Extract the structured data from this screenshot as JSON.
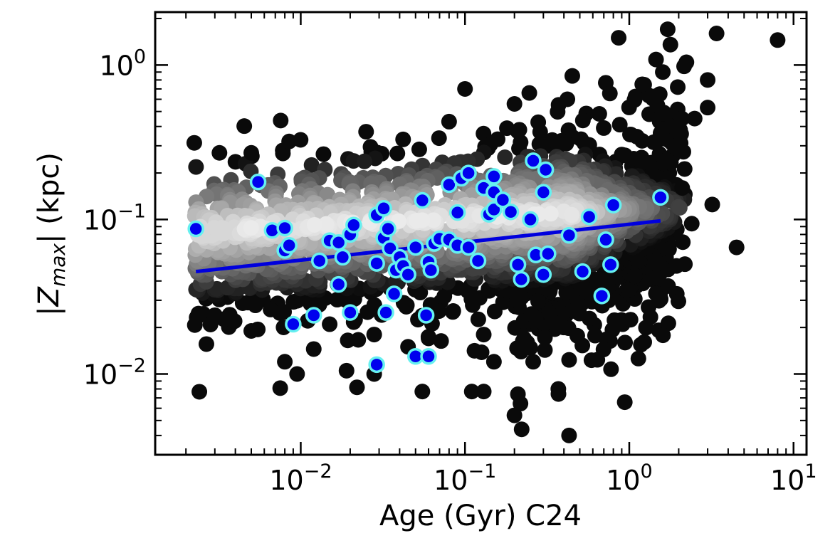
{
  "chart_data": {
    "type": "scatter",
    "title": "",
    "xlabel": "Age (Gyr) C24",
    "ylabel": "|Z_max| (kpc)",
    "xscale": "log",
    "yscale": "log",
    "xlim": [
      0.0013,
      12
    ],
    "ylim": [
      0.003,
      2.2
    ],
    "x_ticks": [
      {
        "value": 0.01,
        "base": "10",
        "exp": "−2"
      },
      {
        "value": 0.1,
        "base": "10",
        "exp": "−1"
      },
      {
        "value": 1,
        "base": "10",
        "exp": "0"
      },
      {
        "value": 10,
        "base": "10",
        "exp": "1"
      }
    ],
    "y_ticks": [
      {
        "value": 0.01,
        "base": "10",
        "exp": "−2"
      },
      {
        "value": 0.1,
        "base": "10",
        "exp": "−1"
      },
      {
        "value": 1,
        "base": "10",
        "exp": "0"
      }
    ],
    "grid": false,
    "legend": "none",
    "colors": {
      "background_points": "grayscale density",
      "highlight_fill": "#0000ee",
      "highlight_edge": "#66f0f0",
      "fit_line": "#0000dd"
    },
    "background_points": {
      "note": "dense grayscale cloud (lighter = higher density)",
      "outliers": [
        [
          0.0032,
          0.27
        ],
        [
          0.005,
          0.27
        ],
        [
          0.0085,
          0.32
        ],
        [
          0.025,
          0.37
        ],
        [
          0.042,
          0.33
        ],
        [
          0.08,
          0.43
        ],
        [
          0.1,
          0.7
        ],
        [
          0.18,
          0.39
        ],
        [
          0.2,
          0.56
        ],
        [
          0.45,
          0.85
        ],
        [
          0.42,
          0.6
        ],
        [
          1.2,
          0.75
        ],
        [
          1.6,
          0.9
        ],
        [
          3.0,
          0.8
        ],
        [
          3.4,
          1.6
        ],
        [
          8.0,
          1.45
        ],
        [
          3.0,
          0.53
        ],
        [
          2.5,
          0.45
        ],
        [
          2.4,
          0.094
        ],
        [
          3.2,
          0.125
        ],
        [
          4.5,
          0.066
        ],
        [
          2.1,
          0.16
        ],
        [
          0.003,
          0.024
        ],
        [
          0.005,
          0.019
        ],
        [
          0.0075,
          0.0081
        ],
        [
          0.008,
          0.012
        ],
        [
          0.0095,
          0.01
        ],
        [
          0.012,
          0.0145
        ],
        [
          0.019,
          0.0105
        ],
        [
          0.022,
          0.0082
        ],
        [
          0.028,
          0.01
        ],
        [
          0.055,
          0.0077
        ],
        [
          0.11,
          0.0077
        ],
        [
          0.13,
          0.0077
        ],
        [
          0.2,
          0.0054
        ],
        [
          0.21,
          0.0074
        ],
        [
          0.26,
          0.012
        ],
        [
          0.37,
          0.008
        ],
        [
          0.43,
          0.004
        ],
        [
          0.15,
          0.012
        ],
        [
          0.028,
          0.018
        ],
        [
          0.045,
          0.015
        ],
        [
          0.06,
          0.017
        ],
        [
          0.4,
          0.02
        ],
        [
          0.75,
          0.03
        ],
        [
          1.0,
          0.035
        ],
        [
          0.015,
          0.021
        ],
        [
          0.13,
          0.018
        ]
      ]
    },
    "highlighted_sample": [
      [
        0.0023,
        0.087
      ],
      [
        0.0055,
        0.175
      ],
      [
        0.0067,
        0.085
      ],
      [
        0.008,
        0.088
      ],
      [
        0.008,
        0.063
      ],
      [
        0.0085,
        0.068
      ],
      [
        0.009,
        0.021
      ],
      [
        0.012,
        0.024
      ],
      [
        0.013,
        0.054
      ],
      [
        0.015,
        0.073
      ],
      [
        0.017,
        0.071
      ],
      [
        0.017,
        0.038
      ],
      [
        0.018,
        0.057
      ],
      [
        0.02,
        0.025
      ],
      [
        0.02,
        0.08
      ],
      [
        0.021,
        0.092
      ],
      [
        0.029,
        0.107
      ],
      [
        0.029,
        0.052
      ],
      [
        0.029,
        0.0115
      ],
      [
        0.032,
        0.118
      ],
      [
        0.032,
        0.076
      ],
      [
        0.033,
        0.025
      ],
      [
        0.034,
        0.087
      ],
      [
        0.035,
        0.065
      ],
      [
        0.037,
        0.033
      ],
      [
        0.038,
        0.047
      ],
      [
        0.04,
        0.057
      ],
      [
        0.042,
        0.05
      ],
      [
        0.045,
        0.044
      ],
      [
        0.05,
        0.013
      ],
      [
        0.05,
        0.066
      ],
      [
        0.055,
        0.133
      ],
      [
        0.058,
        0.024
      ],
      [
        0.06,
        0.013
      ],
      [
        0.06,
        0.053
      ],
      [
        0.062,
        0.047
      ],
      [
        0.065,
        0.07
      ],
      [
        0.07,
        0.075
      ],
      [
        0.08,
        0.074
      ],
      [
        0.08,
        0.168
      ],
      [
        0.09,
        0.068
      ],
      [
        0.09,
        0.111
      ],
      [
        0.095,
        0.185
      ],
      [
        0.105,
        0.2
      ],
      [
        0.105,
        0.066
      ],
      [
        0.12,
        0.054
      ],
      [
        0.13,
        0.16
      ],
      [
        0.14,
        0.108
      ],
      [
        0.15,
        0.19
      ],
      [
        0.15,
        0.15
      ],
      [
        0.15,
        0.116
      ],
      [
        0.17,
        0.134
      ],
      [
        0.19,
        0.112
      ],
      [
        0.21,
        0.051
      ],
      [
        0.22,
        0.041
      ],
      [
        0.25,
        0.1
      ],
      [
        0.26,
        0.24
      ],
      [
        0.27,
        0.059
      ],
      [
        0.3,
        0.044
      ],
      [
        0.3,
        0.15
      ],
      [
        0.31,
        0.21
      ],
      [
        0.32,
        0.06
      ],
      [
        0.43,
        0.079
      ],
      [
        0.52,
        0.046
      ],
      [
        0.57,
        0.104
      ],
      [
        0.68,
        0.032
      ],
      [
        0.72,
        0.074
      ],
      [
        0.77,
        0.051
      ],
      [
        0.8,
        0.124
      ],
      [
        1.55,
        0.139
      ]
    ],
    "fit_line": {
      "x": [
        0.0023,
        1.55
      ],
      "y": [
        0.046,
        0.098
      ]
    }
  }
}
